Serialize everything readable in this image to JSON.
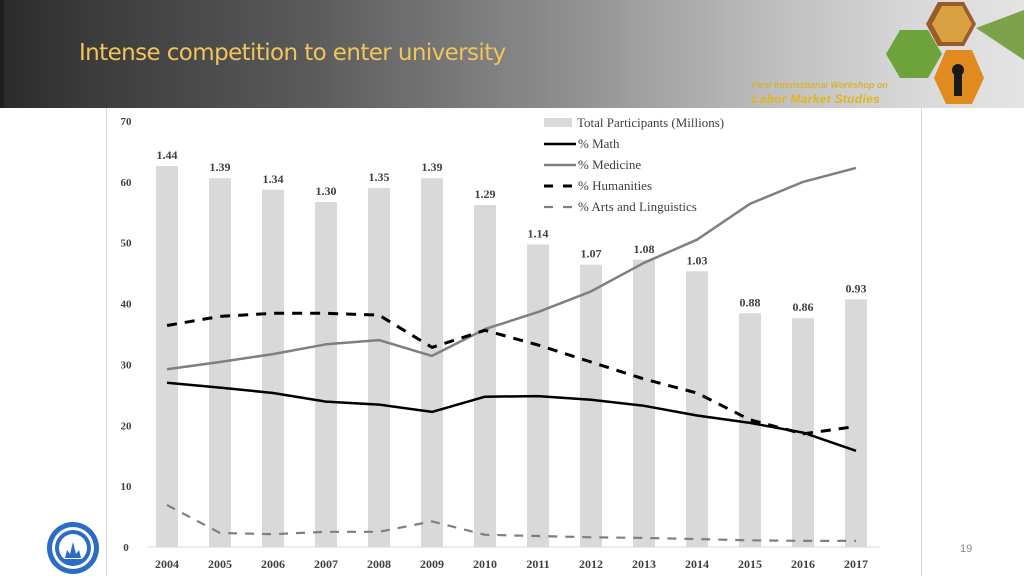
{
  "slide": {
    "title": "Intense competition to enter university",
    "page_number": "19",
    "workshop_line1": "First International Workshop on",
    "workshop_line2": "Labor Market Studies",
    "colors": {
      "title": "#f2c45a",
      "bar": "#d9d9d9",
      "math": "#000000",
      "medicine": "#7f7f7f",
      "humanities": "#000000",
      "arts": "#7f7f7f",
      "logo": "#2b6cc4"
    }
  },
  "chart_data": {
    "type": "bar",
    "title": "",
    "xlabel": "",
    "ylabel": "",
    "ylim": [
      0,
      70
    ],
    "yticks": [
      0,
      10,
      20,
      30,
      40,
      50,
      60,
      70
    ],
    "grid": false,
    "legend_position": "top-right",
    "categories": [
      "2004",
      "2005",
      "2006",
      "2007",
      "2008",
      "2009",
      "2010",
      "2011",
      "2012",
      "2013",
      "2014",
      "2015",
      "2016",
      "2017"
    ],
    "bars": {
      "name": "Total Participants (Millions)",
      "labels": [
        "1.44",
        "1.39",
        "1.34",
        "1.30",
        "1.35",
        "1.39",
        "1.29",
        "1.14",
        "1.07",
        "1.08",
        "1.03",
        "0.88",
        "0.86",
        "0.93"
      ],
      "values_millions": [
        1.44,
        1.39,
        1.34,
        1.3,
        1.35,
        1.39,
        1.29,
        1.14,
        1.07,
        1.08,
        1.03,
        0.88,
        0.86,
        0.93
      ],
      "plotted_values_axis_units": [
        62.6,
        60.6,
        58.7,
        56.7,
        59.0,
        60.6,
        56.2,
        49.7,
        46.4,
        47.2,
        45.3,
        38.4,
        37.6,
        40.7
      ]
    },
    "series": [
      {
        "name": "% Math",
        "style": "solid",
        "color": "#000000",
        "values": [
          27.0,
          26.2,
          25.3,
          23.9,
          23.4,
          22.2,
          24.7,
          24.8,
          24.2,
          23.2,
          21.6,
          20.4,
          18.8,
          15.8
        ]
      },
      {
        "name": "% Medicine",
        "style": "solid",
        "color": "#7f7f7f",
        "values": [
          29.2,
          30.4,
          31.7,
          33.3,
          34.0,
          31.4,
          35.8,
          38.6,
          42.0,
          46.7,
          50.5,
          56.4,
          60.0,
          62.3
        ]
      },
      {
        "name": "% Humanities",
        "style": "dashed",
        "color": "#000000",
        "values": [
          36.4,
          37.9,
          38.4,
          38.4,
          38.1,
          32.8,
          35.6,
          33.2,
          30.4,
          27.6,
          25.3,
          20.9,
          18.6,
          19.8
        ]
      },
      {
        "name": "% Arts and Linguistics",
        "style": "dashed",
        "color": "#7f7f7f",
        "values": [
          6.9,
          2.3,
          2.1,
          2.5,
          2.5,
          4.2,
          2.0,
          1.8,
          1.6,
          1.5,
          1.3,
          1.1,
          1.0,
          1.0
        ]
      }
    ]
  }
}
